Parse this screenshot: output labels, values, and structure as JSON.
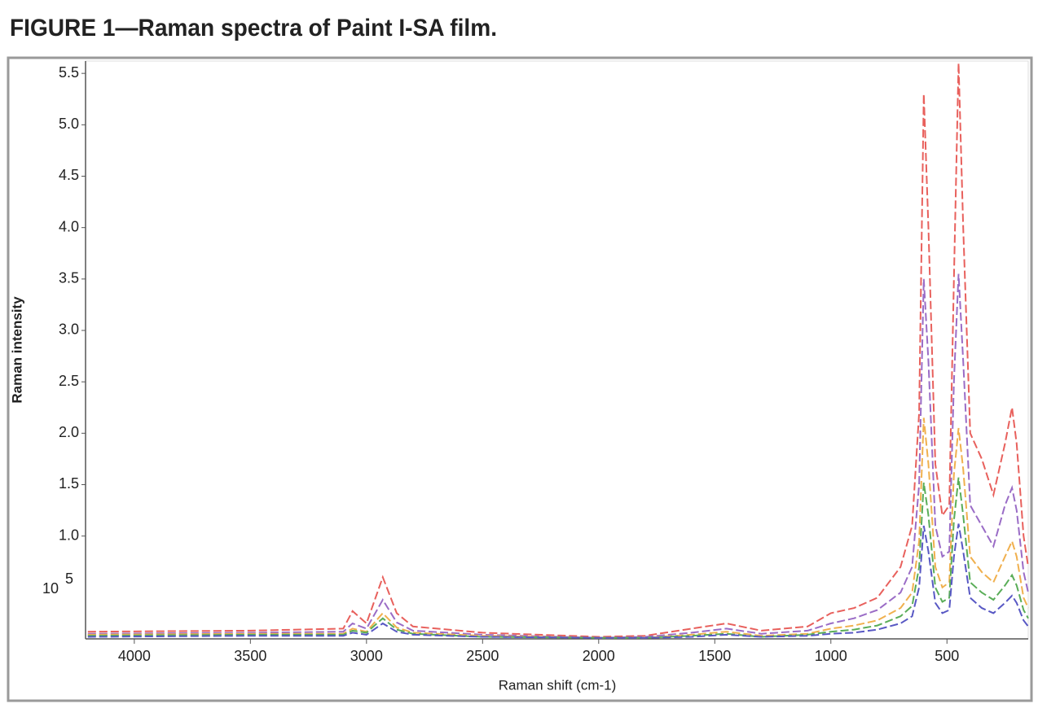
{
  "chart_data": {
    "type": "line",
    "title": "FIGURE 1—Raman spectra of Paint I-SA film.",
    "xlabel": "Raman shift (cm-1)",
    "ylabel": "Raman intensity",
    "multiplier": {
      "base": "10",
      "exponent": "5"
    },
    "x": [
      4200,
      3500,
      3100,
      3060,
      3000,
      2930,
      2870,
      2800,
      2500,
      2000,
      1800,
      1600,
      1450,
      1300,
      1100,
      1000,
      900,
      800,
      700,
      650,
      620,
      600,
      580,
      550,
      520,
      490,
      470,
      450,
      430,
      400,
      350,
      300,
      250,
      220,
      200,
      170,
      150
    ],
    "series": [
      {
        "color": "#e8605c",
        "values": [
          0.07,
          0.08,
          0.1,
          0.27,
          0.15,
          0.6,
          0.25,
          0.12,
          0.06,
          0.02,
          0.03,
          0.1,
          0.15,
          0.08,
          0.12,
          0.25,
          0.3,
          0.4,
          0.7,
          1.1,
          2.2,
          5.3,
          4.0,
          1.7,
          1.2,
          1.3,
          3.5,
          5.6,
          4.0,
          2.0,
          1.75,
          1.4,
          1.9,
          2.25,
          1.9,
          1.0,
          0.7
        ]
      },
      {
        "color": "#9a6cc6",
        "values": [
          0.05,
          0.06,
          0.07,
          0.15,
          0.1,
          0.38,
          0.16,
          0.08,
          0.04,
          0.01,
          0.02,
          0.06,
          0.1,
          0.05,
          0.08,
          0.15,
          0.2,
          0.28,
          0.45,
          0.7,
          1.5,
          3.5,
          2.7,
          1.1,
          0.8,
          0.85,
          2.5,
          3.55,
          2.7,
          1.3,
          1.1,
          0.9,
          1.3,
          1.47,
          1.25,
          0.65,
          0.45
        ]
      },
      {
        "color": "#f0b04e",
        "values": [
          0.04,
          0.05,
          0.05,
          0.1,
          0.07,
          0.25,
          0.11,
          0.06,
          0.03,
          0.01,
          0.01,
          0.04,
          0.07,
          0.03,
          0.05,
          0.1,
          0.13,
          0.18,
          0.3,
          0.45,
          0.95,
          2.15,
          1.7,
          0.7,
          0.5,
          0.55,
          1.6,
          2.05,
          1.65,
          0.8,
          0.65,
          0.55,
          0.8,
          0.95,
          0.8,
          0.4,
          0.3
        ]
      },
      {
        "color": "#5aad58",
        "values": [
          0.03,
          0.04,
          0.04,
          0.08,
          0.06,
          0.2,
          0.09,
          0.05,
          0.02,
          0.01,
          0.01,
          0.03,
          0.05,
          0.02,
          0.04,
          0.07,
          0.09,
          0.13,
          0.22,
          0.32,
          0.7,
          1.52,
          1.2,
          0.5,
          0.36,
          0.4,
          1.15,
          1.57,
          1.2,
          0.55,
          0.45,
          0.38,
          0.52,
          0.62,
          0.52,
          0.28,
          0.2
        ]
      },
      {
        "color": "#5858c4",
        "values": [
          0.02,
          0.03,
          0.03,
          0.06,
          0.04,
          0.15,
          0.07,
          0.04,
          0.02,
          0.01,
          0.01,
          0.02,
          0.04,
          0.02,
          0.03,
          0.05,
          0.06,
          0.09,
          0.15,
          0.22,
          0.5,
          1.1,
          0.85,
          0.35,
          0.25,
          0.28,
          0.8,
          1.12,
          0.85,
          0.4,
          0.3,
          0.25,
          0.35,
          0.42,
          0.35,
          0.18,
          0.12
        ]
      }
    ],
    "xlim": [
      4210,
      150
    ],
    "xticks": [
      4000,
      3500,
      3000,
      2500,
      2000,
      1500,
      1000,
      500
    ],
    "ylim": [
      0,
      5.62
    ],
    "yticks": [
      {
        "value": 1,
        "label": "1.0"
      },
      1.5,
      {
        "value": 2,
        "label": "2.0"
      },
      2.5,
      {
        "value": 3,
        "label": "3.0"
      },
      3.5,
      {
        "value": 4,
        "label": "4.0"
      },
      4.5,
      {
        "value": 5,
        "label": "5.0"
      },
      5.5
    ],
    "dashed": true
  }
}
